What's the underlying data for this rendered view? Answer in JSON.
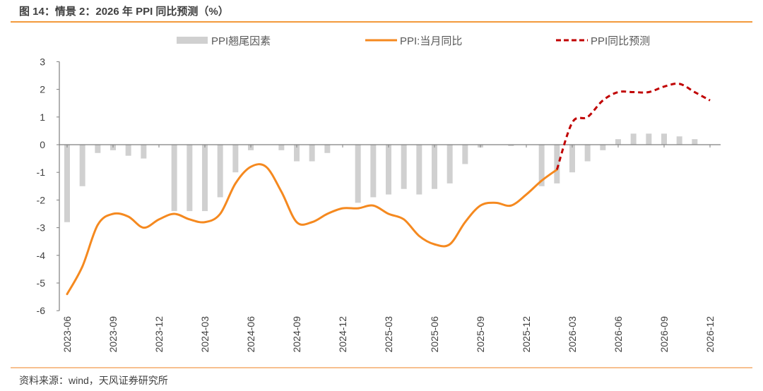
{
  "title": "图 14：情景 2：2026 年 PPI 同比预测（%）",
  "source": "资料来源：wind，天风证券研究所",
  "colors": {
    "bar": "#d0d0d0",
    "actual": "#f5891f",
    "forecast": "#c00000",
    "accent": "#f39a3b"
  },
  "chart_data": {
    "type": "bar+line",
    "title": "图 14：情景 2：2026 年 PPI 同比预测（%）",
    "xlabel": "",
    "ylabel": "",
    "ylim": [
      -6,
      3
    ],
    "yticks": [
      "3",
      "2",
      "1",
      "0",
      "-1",
      "-2",
      "-3",
      "-4",
      "-5",
      "-6"
    ],
    "legend_position": "top",
    "x": [
      "2023-06",
      "2023-07",
      "2023-08",
      "2023-09",
      "2023-10",
      "2023-11",
      "2023-12",
      "2024-01",
      "2024-02",
      "2024-03",
      "2024-04",
      "2024-05",
      "2024-06",
      "2024-07",
      "2024-08",
      "2024-09",
      "2024-10",
      "2024-11",
      "2024-12",
      "2025-01",
      "2025-02",
      "2025-03",
      "2025-04",
      "2025-05",
      "2025-06",
      "2025-07",
      "2025-08",
      "2025-09",
      "2025-10",
      "2025-11",
      "2025-12",
      "2026-01",
      "2026-02",
      "2026-03",
      "2026-04",
      "2026-05",
      "2026-06",
      "2026-07",
      "2026-08",
      "2026-09",
      "2026-10",
      "2026-11",
      "2026-12"
    ],
    "xtick_labels": [
      "2023-06",
      "2023-09",
      "2023-12",
      "2024-03",
      "2024-06",
      "2024-09",
      "2024-12",
      "2025-03",
      "2025-06",
      "2025-09",
      "2025-12",
      "2026-03",
      "2026-06",
      "2026-09",
      "2026-12"
    ],
    "series": [
      {
        "name": "PPI翘尾因素",
        "type": "bar",
        "values": [
          -2.8,
          -1.5,
          -0.3,
          -0.2,
          -0.4,
          -0.5,
          0,
          -2.4,
          -2.4,
          -2.4,
          -1.9,
          -1.0,
          -0.2,
          0,
          -0.2,
          -0.6,
          -0.6,
          -0.3,
          0,
          -2.1,
          -1.9,
          -1.8,
          -1.6,
          -1.8,
          -1.6,
          -1.4,
          -0.7,
          -0.1,
          0,
          -0.05,
          0,
          -1.5,
          -1.4,
          -1.0,
          -0.6,
          -0.2,
          0.2,
          0.4,
          0.4,
          0.4,
          0.3,
          0.2,
          0
        ]
      },
      {
        "name": "PPI:当月同比",
        "type": "line",
        "values": [
          -5.4,
          -4.4,
          -2.9,
          -2.5,
          -2.6,
          -3.0,
          -2.7,
          -2.5,
          -2.7,
          -2.8,
          -2.5,
          -1.4,
          -0.8,
          -0.8,
          -1.7,
          -2.8,
          -2.8,
          -2.5,
          -2.3,
          -2.3,
          -2.2,
          -2.5,
          -2.7,
          -3.3,
          -3.6,
          -3.6,
          -2.8,
          -2.2,
          -2.1,
          -2.2,
          -1.8,
          -1.3,
          -0.9,
          null,
          null,
          null,
          null,
          null,
          null,
          null,
          null,
          null,
          null
        ]
      },
      {
        "name": "PPI同比预测",
        "type": "line-dashed",
        "values": [
          null,
          null,
          null,
          null,
          null,
          null,
          null,
          null,
          null,
          null,
          null,
          null,
          null,
          null,
          null,
          null,
          null,
          null,
          null,
          null,
          null,
          null,
          null,
          null,
          null,
          null,
          null,
          null,
          null,
          null,
          null,
          null,
          -0.9,
          0.8,
          1.0,
          1.6,
          1.9,
          1.9,
          1.9,
          2.1,
          2.2,
          1.9,
          1.6
        ]
      }
    ]
  }
}
